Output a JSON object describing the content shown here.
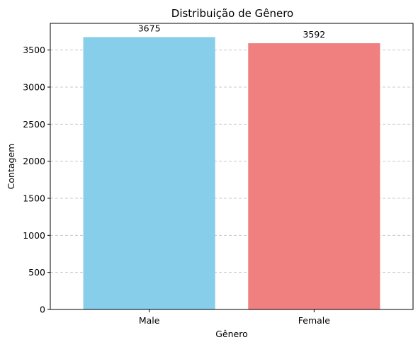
{
  "chart_data": {
    "type": "bar",
    "title": "Distribuição de Gênero",
    "xlabel": "Gênero",
    "ylabel": "Contagem",
    "categories": [
      "Male",
      "Female"
    ],
    "values": [
      3675,
      3592
    ],
    "data_labels": [
      "3675",
      "3592"
    ],
    "colors": [
      "#87ceeb",
      "#f08080"
    ],
    "ylim": [
      0,
      3860
    ],
    "yticks": [
      0,
      500,
      1000,
      1500,
      2000,
      2500,
      3000,
      3500
    ],
    "ytick_labels": [
      "0",
      "500",
      "1000",
      "1500",
      "2000",
      "2500",
      "3000",
      "3500"
    ],
    "grid": "y-dashed",
    "grid_color": "#c8c8c8",
    "legend": "none"
  }
}
